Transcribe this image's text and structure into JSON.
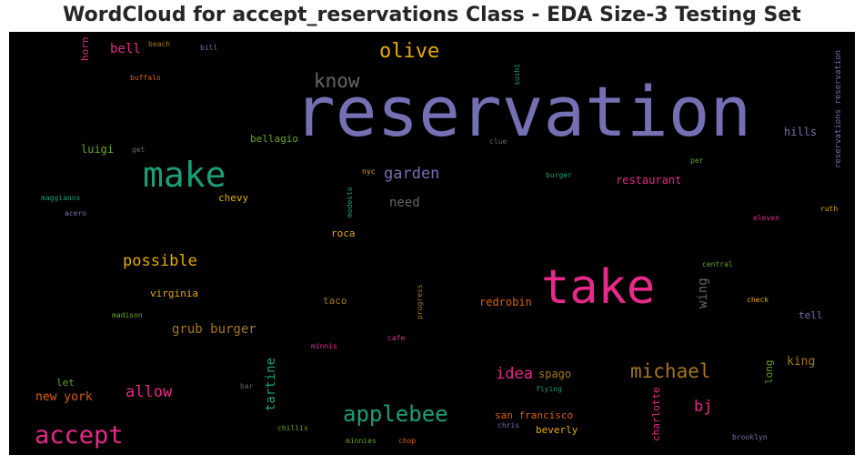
{
  "chart_data": {
    "type": "wordcloud",
    "title": "WordCloud for accept_reservations Class - EDA Size-3 Testing Set",
    "background": "#000000",
    "words": [
      {
        "text": "reservation",
        "color": "#7570b3"
      },
      {
        "text": "take",
        "color": "#e7298a"
      },
      {
        "text": "make",
        "color": "#1b9e77"
      },
      {
        "text": "accept",
        "color": "#e7298a"
      },
      {
        "text": "applebee",
        "color": "#1b9e77"
      },
      {
        "text": "olive",
        "color": "#e6ab02"
      },
      {
        "text": "michael",
        "color": "#a6761d"
      },
      {
        "text": "know",
        "color": "#666666"
      },
      {
        "text": "garden",
        "color": "#7570b3"
      },
      {
        "text": "possible",
        "color": "#e6ab02"
      },
      {
        "text": "allow",
        "color": "#e7298a"
      },
      {
        "text": "idea",
        "color": "#e7298a"
      },
      {
        "text": "bj",
        "color": "#e7298a"
      },
      {
        "text": "grub burger",
        "color": "#a6761d"
      },
      {
        "text": "need",
        "color": "#666666"
      },
      {
        "text": "bell",
        "color": "#e7298a"
      },
      {
        "text": "new york",
        "color": "#d95f02"
      },
      {
        "text": "tartine",
        "color": "#1b9e77"
      },
      {
        "text": "wing",
        "color": "#666666"
      },
      {
        "text": "king",
        "color": "#a6761d"
      },
      {
        "text": "restaurant",
        "color": "#e7298a"
      },
      {
        "text": "hills",
        "color": "#7570b3"
      },
      {
        "text": "luigi",
        "color": "#66a61e"
      },
      {
        "text": "bellagio",
        "color": "#66a61e"
      },
      {
        "text": "virginia",
        "color": "#e6ab02"
      },
      {
        "text": "redrobin",
        "color": "#d95f02"
      },
      {
        "text": "spago",
        "color": "#a6761d"
      },
      {
        "text": "chevy",
        "color": "#e6ab02"
      },
      {
        "text": "taco",
        "color": "#a6761d"
      },
      {
        "text": "roca",
        "color": "#e6ab02"
      },
      {
        "text": "san francisco",
        "color": "#d95f02"
      },
      {
        "text": "beverly",
        "color": "#e6ab02"
      },
      {
        "text": "let",
        "color": "#66a61e"
      },
      {
        "text": "tell",
        "color": "#7570b3"
      },
      {
        "text": "long",
        "color": "#66a61e"
      },
      {
        "text": "charlotte",
        "color": "#e7298a"
      },
      {
        "text": "horn",
        "color": "#e7298a"
      },
      {
        "text": "reservations reservation",
        "color": "#7570b3"
      },
      {
        "text": "beach",
        "color": "#a6761d"
      },
      {
        "text": "bill",
        "color": "#7570b3"
      },
      {
        "text": "buffalo",
        "color": "#d95f02"
      },
      {
        "text": "sushi",
        "color": "#1b9e77"
      },
      {
        "text": "get",
        "color": "#666666"
      },
      {
        "text": "clue",
        "color": "#666666"
      },
      {
        "text": "maggianos",
        "color": "#1b9e77"
      },
      {
        "text": "acero",
        "color": "#7570b3"
      },
      {
        "text": "nyc",
        "color": "#e6ab02"
      },
      {
        "text": "modesto",
        "color": "#1b9e77"
      },
      {
        "text": "burger",
        "color": "#1b9e77"
      },
      {
        "text": "per",
        "color": "#66a61e"
      },
      {
        "text": "eleven",
        "color": "#e7298a"
      },
      {
        "text": "ruth",
        "color": "#e6ab02"
      },
      {
        "text": "central",
        "color": "#66a61e"
      },
      {
        "text": "check",
        "color": "#e6ab02"
      },
      {
        "text": "madison",
        "color": "#66a61e"
      },
      {
        "text": "progress",
        "color": "#a6761d"
      },
      {
        "text": "minnis",
        "color": "#e7298a"
      },
      {
        "text": "cafe",
        "color": "#e7298a"
      },
      {
        "text": "bar",
        "color": "#666666"
      },
      {
        "text": "flying",
        "color": "#1b9e77"
      },
      {
        "text": "chris",
        "color": "#7570b3"
      },
      {
        "text": "chillis",
        "color": "#66a61e"
      },
      {
        "text": "minnies",
        "color": "#66a61e"
      },
      {
        "text": "chop",
        "color": "#d95f02"
      },
      {
        "text": "brooklyn",
        "color": "#7570b3"
      }
    ]
  }
}
